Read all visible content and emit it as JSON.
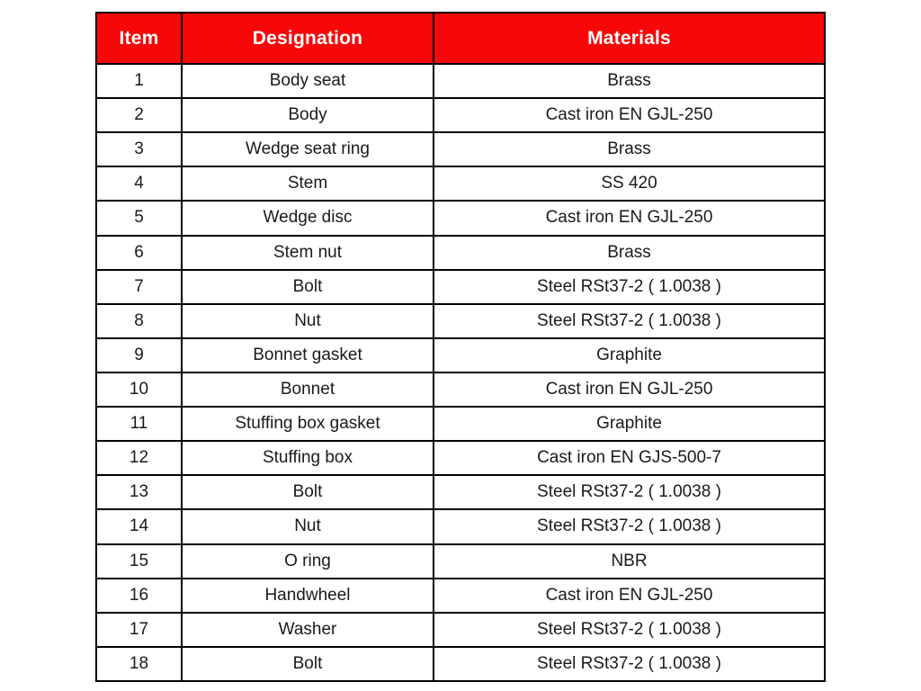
{
  "colors": {
    "header_bg": "#F70707",
    "header_text": "#FFFFFF",
    "body_bg": "#FFFFFF",
    "body_text": "#1A1A1A",
    "border": "#000000"
  },
  "table": {
    "headers": [
      "Item",
      "Designation",
      "Materials"
    ],
    "rows": [
      [
        "1",
        "Body seat",
        "Brass"
      ],
      [
        "2",
        "Body",
        "Cast iron EN GJL-250"
      ],
      [
        "3",
        "Wedge seat ring",
        "Brass"
      ],
      [
        "4",
        "Stem",
        "SS 420"
      ],
      [
        "5",
        "Wedge disc",
        "Cast iron EN GJL-250"
      ],
      [
        "6",
        "Stem nut",
        "Brass"
      ],
      [
        "7",
        "Bolt",
        "Steel RSt37-2 ( 1.0038 )"
      ],
      [
        "8",
        "Nut",
        "Steel RSt37-2 ( 1.0038 )"
      ],
      [
        "9",
        "Bonnet gasket",
        "Graphite"
      ],
      [
        "10",
        "Bonnet",
        "Cast iron EN GJL-250"
      ],
      [
        "11",
        "Stuffing box gasket",
        "Graphite"
      ],
      [
        "12",
        "Stuffing box",
        "Cast iron EN GJS-500-7"
      ],
      [
        "13",
        "Bolt",
        "Steel RSt37-2 ( 1.0038 )"
      ],
      [
        "14",
        "Nut",
        "Steel RSt37-2 ( 1.0038 )"
      ],
      [
        "15",
        "O ring",
        "NBR"
      ],
      [
        "16",
        "Handwheel",
        "Cast iron EN GJL-250"
      ],
      [
        "17",
        "Washer",
        "Steel RSt37-2 ( 1.0038 )"
      ],
      [
        "18",
        "Bolt",
        "Steel RSt37-2 ( 1.0038 )"
      ]
    ]
  }
}
